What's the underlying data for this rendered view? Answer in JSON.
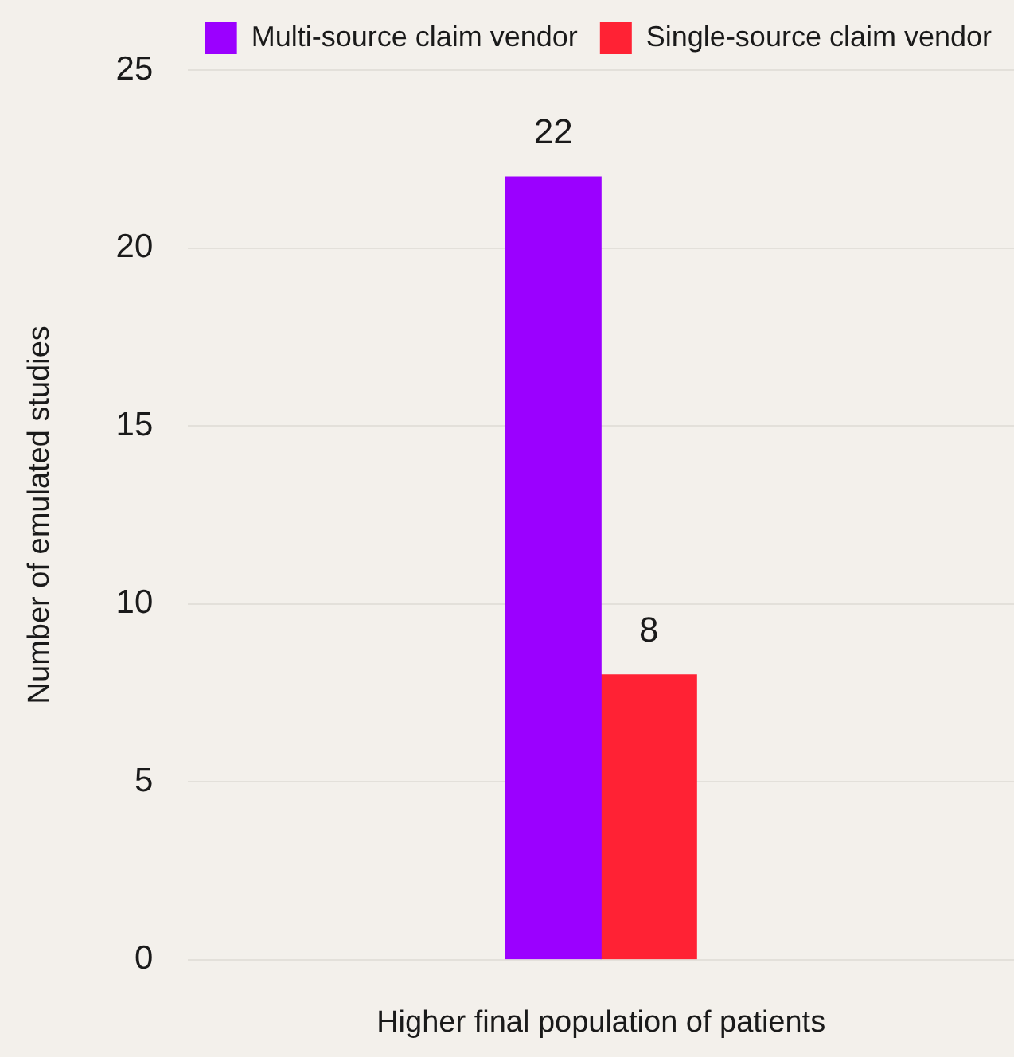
{
  "chart_data": {
    "type": "bar",
    "xlabel": "Higher final population of patients",
    "ylabel": "Number of emulated studies",
    "categories": [
      null
    ],
    "series": [
      {
        "name": "Multi-source claim vendor",
        "color": "#9b00ff",
        "values": [
          22
        ]
      },
      {
        "name": "Single-source claim vendor",
        "color": "#ff2234",
        "values": [
          8
        ]
      }
    ],
    "ylim": [
      0,
      25
    ],
    "yticks": [
      0,
      5,
      10,
      15,
      20,
      25
    ],
    "grid": "y",
    "legend": "top right",
    "data_labels": true
  }
}
